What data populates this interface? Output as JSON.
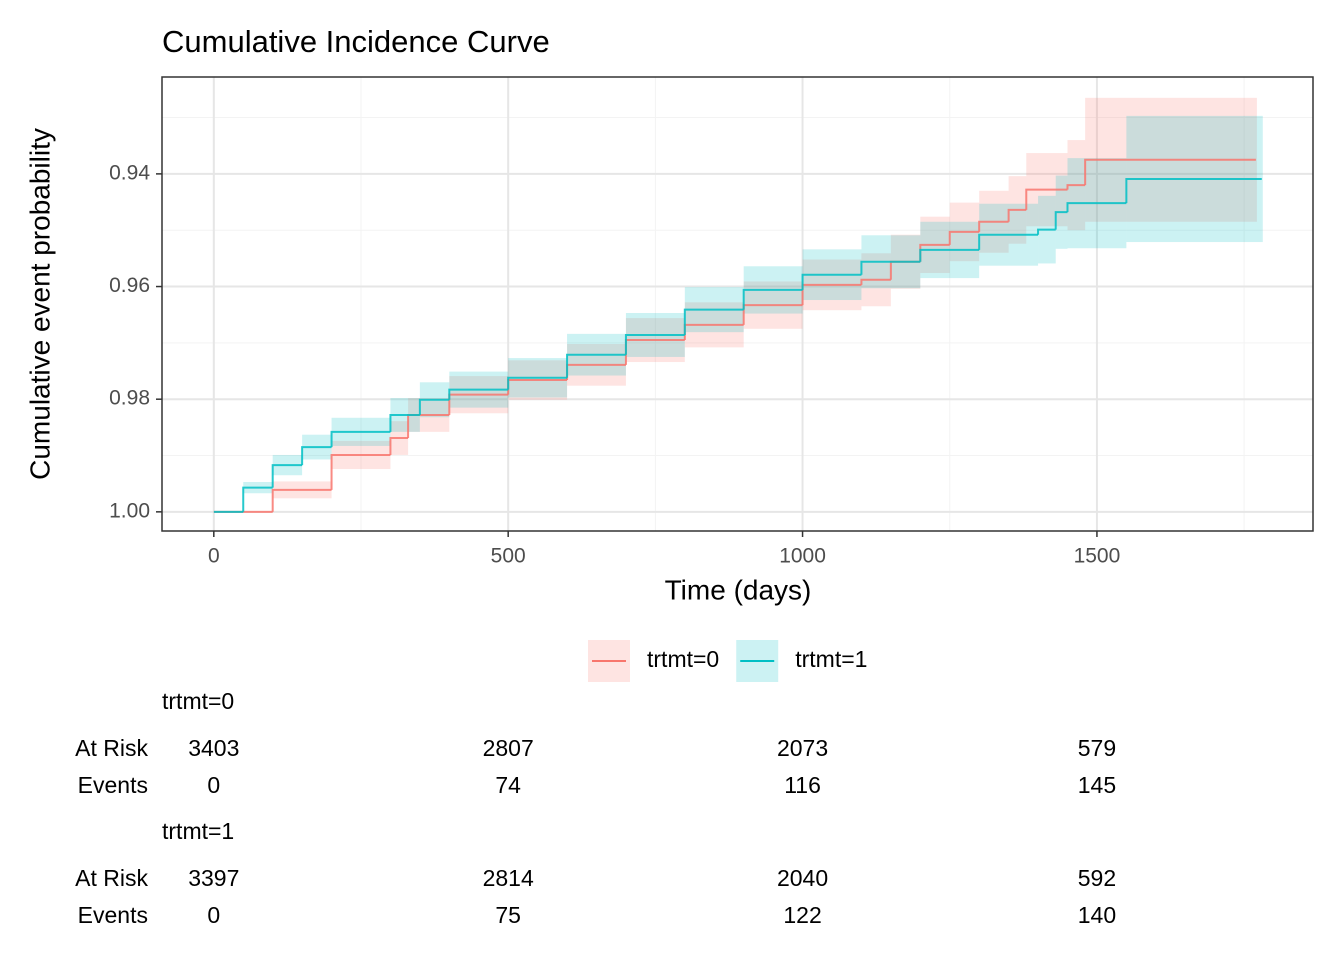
{
  "chart_data": {
    "type": "step",
    "title": "Cumulative Incidence Curve",
    "x_label": "Time (days)",
    "y_label": "Cumulative event probability",
    "xlim": [
      -88,
      1867
    ],
    "ylim": [
      1.0034,
      0.9228
    ],
    "xticks": [
      0,
      500,
      1000,
      1500
    ],
    "yticks": [
      {
        "value": 1,
        "label": "1.00"
      },
      0.98,
      0.96,
      0.94
    ],
    "x_minor": [
      250,
      750,
      1250,
      1750
    ],
    "y_minor": [
      0.99,
      0.97,
      0.95,
      0.93
    ],
    "grid": true,
    "legend": "bottom",
    "series": [
      {
        "name": "trtmt=0",
        "color": "#F8766D",
        "x": [
          0,
          100,
          200,
          300,
          330,
          400,
          500,
          600,
          700,
          800,
          900,
          1000,
          1100,
          1150,
          1200,
          1250,
          1300,
          1350,
          1380,
          1450,
          1480,
          1770
        ],
        "values": [
          1.0,
          0.9961,
          0.9899,
          0.9869,
          0.9828,
          0.9792,
          0.9766,
          0.9739,
          0.9695,
          0.9668,
          0.9633,
          0.9597,
          0.9588,
          0.9556,
          0.9526,
          0.9503,
          0.9485,
          0.9464,
          0.9428,
          0.942,
          0.9375,
          0.9375
        ],
        "upper": [
          1.0,
          0.9976,
          0.9924,
          0.9899,
          0.9858,
          0.9825,
          0.9801,
          0.9776,
          0.9734,
          0.9708,
          0.9675,
          0.9642,
          0.9635,
          0.9604,
          0.9576,
          0.9555,
          0.954,
          0.9524,
          0.9493,
          0.95,
          0.9485,
          0.9485
        ],
        "lower": [
          1.0,
          0.9946,
          0.9874,
          0.9839,
          0.9798,
          0.9759,
          0.9731,
          0.9702,
          0.9656,
          0.9628,
          0.9591,
          0.9552,
          0.9541,
          0.9508,
          0.9476,
          0.9451,
          0.943,
          0.9404,
          0.9363,
          0.934,
          0.9265,
          0.9265
        ]
      },
      {
        "name": "trtmt=1",
        "color": "#00BFC4",
        "x": [
          0,
          50,
          100,
          150,
          200,
          300,
          350,
          400,
          500,
          600,
          700,
          800,
          900,
          1000,
          1100,
          1200,
          1300,
          1400,
          1430,
          1450,
          1550,
          1780
        ],
        "values": [
          1.0,
          0.9957,
          0.9917,
          0.9885,
          0.9858,
          0.9828,
          0.9801,
          0.9783,
          0.9762,
          0.9721,
          0.9686,
          0.9641,
          0.9606,
          0.9579,
          0.9556,
          0.9535,
          0.9508,
          0.9499,
          0.9468,
          0.9452,
          0.9409,
          0.9409
        ],
        "upper": [
          1.0,
          0.9967,
          0.9935,
          0.9907,
          0.9883,
          0.9858,
          0.9832,
          0.9815,
          0.9797,
          0.9758,
          0.9725,
          0.9681,
          0.9648,
          0.9624,
          0.9603,
          0.9585,
          0.9563,
          0.9559,
          0.9533,
          0.9532,
          0.9521,
          0.9521
        ],
        "lower": [
          1.0,
          0.9947,
          0.9899,
          0.9863,
          0.9833,
          0.9798,
          0.977,
          0.9751,
          0.9727,
          0.9684,
          0.9647,
          0.9601,
          0.9564,
          0.9534,
          0.9509,
          0.9485,
          0.9453,
          0.9439,
          0.9403,
          0.9372,
          0.9297,
          0.9297
        ]
      }
    ],
    "risk_table": {
      "row_labels": [
        "At Risk",
        "Events"
      ],
      "groups": [
        {
          "name": "trtmt=0",
          "at_risk": [
            3403,
            2807,
            2073,
            579
          ],
          "events": [
            0,
            74,
            116,
            145
          ]
        },
        {
          "name": "trtmt=1",
          "at_risk": [
            3397,
            2814,
            2040,
            592
          ],
          "events": [
            0,
            75,
            122,
            140
          ]
        }
      ]
    }
  }
}
